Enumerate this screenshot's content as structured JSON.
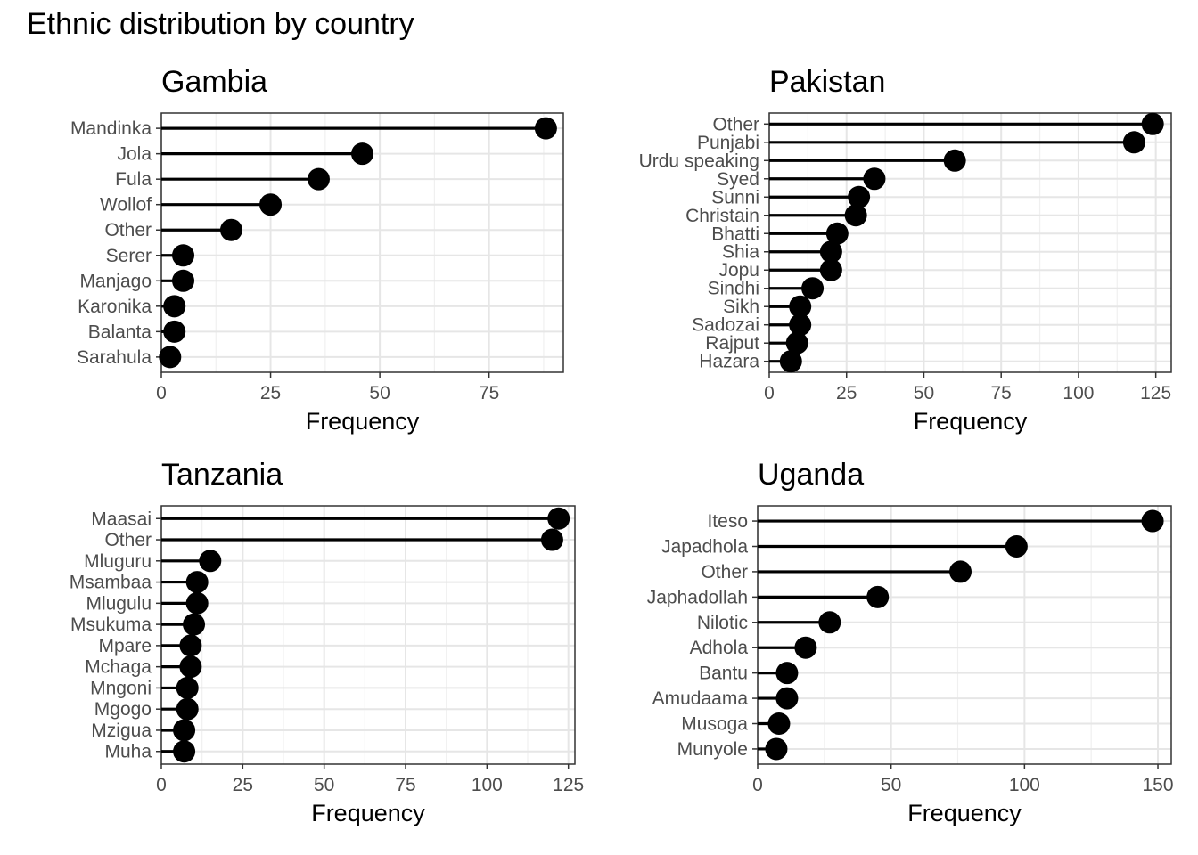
{
  "title": "Ethnic distribution by country",
  "chart_data": [
    {
      "type": "lollipop",
      "title": "Gambia",
      "xlabel": "Frequency",
      "ylabel": "",
      "xlim": [
        0,
        92
      ],
      "xticks": [
        0,
        25,
        50,
        75
      ],
      "grid": true,
      "categories": [
        "Mandinka",
        "Jola",
        "Fula",
        "Wollof",
        "Other",
        "Serer",
        "Manjago",
        "Karonika",
        "Balanta",
        "Sarahula"
      ],
      "values": [
        88,
        46,
        36,
        25,
        16,
        5,
        5,
        3,
        3,
        2
      ]
    },
    {
      "type": "lollipop",
      "title": "Pakistan",
      "xlabel": "Frequency",
      "ylabel": "",
      "xlim": [
        0,
        130
      ],
      "xticks": [
        0,
        25,
        50,
        75,
        100,
        125
      ],
      "grid": true,
      "categories": [
        "Other",
        "Punjabi",
        "Urdu speaking",
        "Syed",
        "Sunni",
        "Christain",
        "Bhatti",
        "Shia",
        "Jopu",
        "Sindhi",
        "Sikh",
        "Sadozai",
        "Rajput",
        "Hazara"
      ],
      "values": [
        124,
        118,
        60,
        34,
        29,
        28,
        22,
        20,
        20,
        14,
        10,
        10,
        9,
        7
      ]
    },
    {
      "type": "lollipop",
      "title": "Tanzania",
      "xlabel": "Frequency",
      "ylabel": "",
      "xlim": [
        0,
        127
      ],
      "xticks": [
        0,
        25,
        50,
        75,
        100,
        125
      ],
      "grid": true,
      "categories": [
        "Maasai",
        "Other",
        "Mluguru",
        "Msambaa",
        "Mlugulu",
        "Msukuma",
        "Mpare",
        "Mchaga",
        "Mngoni",
        "Mgogo",
        "Mzigua",
        "Muha"
      ],
      "values": [
        122,
        120,
        15,
        11,
        11,
        10,
        9,
        9,
        8,
        8,
        7,
        7
      ]
    },
    {
      "type": "lollipop",
      "title": "Uganda",
      "xlabel": "Frequency",
      "ylabel": "",
      "xlim": [
        0,
        155
      ],
      "xticks": [
        0,
        50,
        100,
        150
      ],
      "grid": true,
      "categories": [
        "Iteso",
        "Japadhola",
        "Other",
        "Japhadollah",
        "Nilotic",
        "Adhola",
        "Bantu",
        "Amudaama",
        "Musoga",
        "Munyole"
      ],
      "values": [
        148,
        97,
        76,
        45,
        27,
        18,
        11,
        11,
        8,
        7
      ]
    }
  ]
}
